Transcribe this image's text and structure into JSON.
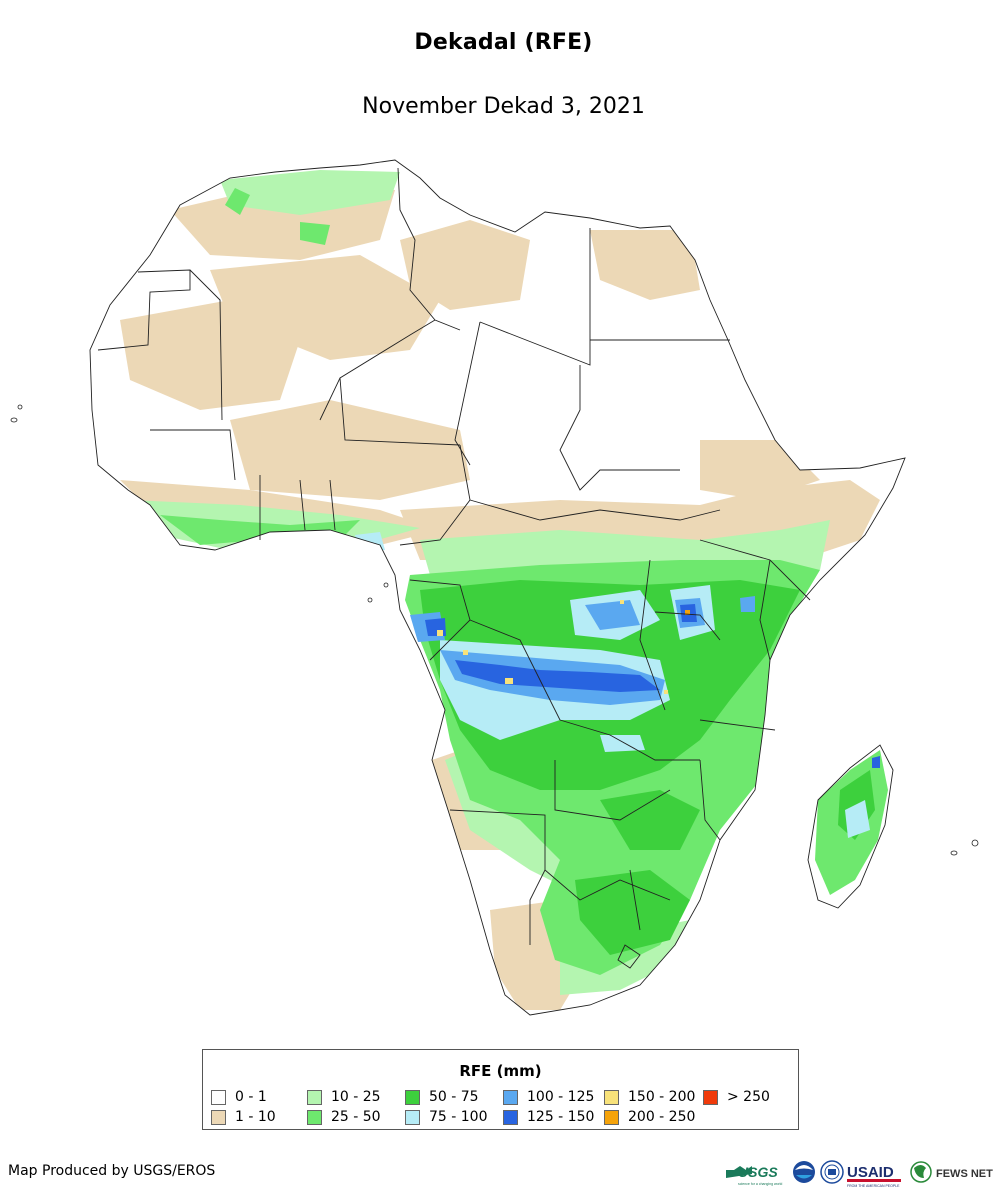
{
  "title": "Dekadal (RFE)",
  "subtitle": "November Dekad 3, 2021",
  "legend": {
    "title": "RFE (mm)",
    "items": [
      {
        "label": "0 - 1",
        "color": "#ffffff"
      },
      {
        "label": "1 - 10",
        "color": "#ecd8b6"
      },
      {
        "label": "10 - 25",
        "color": "#b4f5b0"
      },
      {
        "label": "25 - 50",
        "color": "#6ee86e"
      },
      {
        "label": "50 - 75",
        "color": "#3dd03d"
      },
      {
        "label": "75 - 100",
        "color": "#b6ecf6"
      },
      {
        "label": "100 - 125",
        "color": "#5aa8f0"
      },
      {
        "label": "125 - 150",
        "color": "#2864e0"
      },
      {
        "label": "150 - 200",
        "color": "#f8e27a"
      },
      {
        "label": "200 - 250",
        "color": "#f5a30a"
      },
      {
        "label": "> 250",
        "color": "#f03a0a"
      }
    ]
  },
  "credit": "Map Produced by USGS/EROS",
  "logos": {
    "usgs": "USGS",
    "usgs_tagline": "science for a changing world",
    "usaid": "USAID",
    "usaid_tagline": "FROM THE AMERICAN PEOPLE",
    "fewsnet": "FEWS NET"
  }
}
